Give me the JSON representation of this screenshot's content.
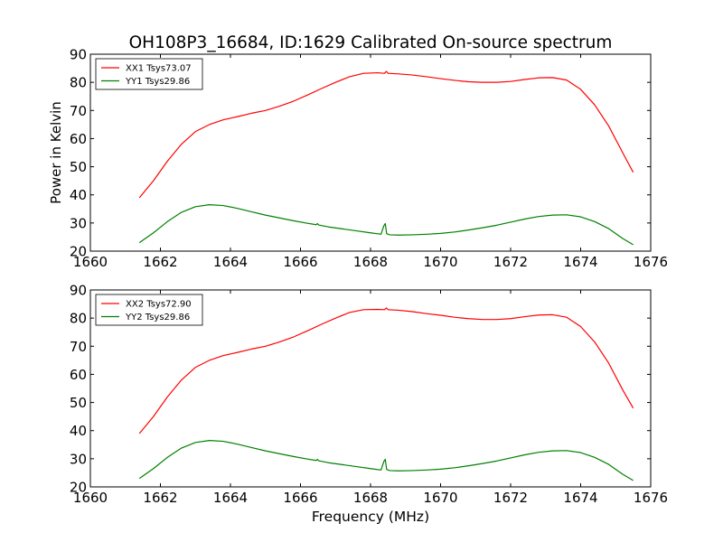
{
  "figure": {
    "title": "OH108P3_16684, ID:1629 Calibrated On-source spectrum",
    "xlabel": "Frequency (MHz)"
  },
  "chart_data": [
    {
      "type": "line",
      "title": "OH108P3_16684, ID:1629 Calibrated On-source spectrum",
      "xlabel": "",
      "ylabel": "Power in Kelvin",
      "xlim": [
        1660,
        1676
      ],
      "ylim": [
        20,
        90
      ],
      "xticks": [
        1660,
        1662,
        1664,
        1666,
        1668,
        1670,
        1672,
        1674,
        1676
      ],
      "yticks": [
        20,
        30,
        40,
        50,
        60,
        70,
        80,
        90
      ],
      "grid": false,
      "legend": "top-left",
      "series": [
        {
          "name": "XX1 Tsys73.07",
          "color": "#ff0000",
          "x": [
            1661.4,
            1661.8,
            1662.2,
            1662.6,
            1663.0,
            1663.4,
            1663.8,
            1664.2,
            1664.6,
            1665.0,
            1665.4,
            1665.8,
            1666.2,
            1666.6,
            1667.0,
            1667.4,
            1667.8,
            1668.2,
            1668.4,
            1668.45,
            1668.5,
            1668.8,
            1669.2,
            1669.6,
            1670.0,
            1670.4,
            1670.8,
            1671.2,
            1671.6,
            1672.0,
            1672.4,
            1672.8,
            1673.2,
            1673.6,
            1674.0,
            1674.4,
            1674.8,
            1675.2,
            1675.5
          ],
          "y": [
            39.0,
            45.0,
            52.0,
            58.0,
            62.5,
            65.0,
            66.7,
            67.8,
            69.0,
            70.0,
            71.5,
            73.3,
            75.5,
            77.8,
            80.0,
            82.0,
            83.2,
            83.4,
            83.2,
            83.9,
            83.2,
            83.0,
            82.6,
            82.0,
            81.3,
            80.7,
            80.2,
            80.0,
            80.0,
            80.3,
            81.0,
            81.6,
            81.7,
            80.8,
            77.5,
            72.0,
            64.5,
            55.0,
            48.0
          ]
        },
        {
          "name": "YY1 Tsys29.86",
          "color": "#008000",
          "x": [
            1661.4,
            1661.8,
            1662.2,
            1662.6,
            1663.0,
            1663.4,
            1663.8,
            1664.2,
            1664.6,
            1665.0,
            1665.4,
            1665.8,
            1666.2,
            1666.45,
            1666.48,
            1666.52,
            1666.8,
            1667.2,
            1667.6,
            1668.0,
            1668.3,
            1668.38,
            1668.42,
            1668.46,
            1668.55,
            1668.8,
            1669.2,
            1669.6,
            1670.0,
            1670.4,
            1670.8,
            1671.2,
            1671.6,
            1672.0,
            1672.4,
            1672.8,
            1673.2,
            1673.6,
            1674.0,
            1674.4,
            1674.8,
            1675.2,
            1675.5
          ],
          "y": [
            23.0,
            26.5,
            30.5,
            33.8,
            35.8,
            36.5,
            36.2,
            35.2,
            34.0,
            32.8,
            31.8,
            30.8,
            29.9,
            29.4,
            29.8,
            29.3,
            28.6,
            27.9,
            27.2,
            26.5,
            26.0,
            29.0,
            29.8,
            26.2,
            25.8,
            25.7,
            25.8,
            26.0,
            26.3,
            26.8,
            27.5,
            28.3,
            29.2,
            30.3,
            31.4,
            32.3,
            32.8,
            32.9,
            32.2,
            30.5,
            28.0,
            24.5,
            22.3
          ]
        }
      ]
    },
    {
      "type": "line",
      "title": "",
      "xlabel": "Frequency (MHz)",
      "ylabel": "",
      "xlim": [
        1660,
        1676
      ],
      "ylim": [
        20,
        90
      ],
      "xticks": [
        1660,
        1662,
        1664,
        1666,
        1668,
        1670,
        1672,
        1674,
        1676
      ],
      "yticks": [
        20,
        30,
        40,
        50,
        60,
        70,
        80,
        90
      ],
      "grid": false,
      "legend": "top-left",
      "series": [
        {
          "name": "XX2 Tsys72.90",
          "color": "#ff0000",
          "x": [
            1661.4,
            1661.8,
            1662.2,
            1662.6,
            1663.0,
            1663.4,
            1663.8,
            1664.2,
            1664.6,
            1665.0,
            1665.4,
            1665.8,
            1666.2,
            1666.6,
            1667.0,
            1667.4,
            1667.8,
            1668.2,
            1668.4,
            1668.45,
            1668.5,
            1668.8,
            1669.2,
            1669.6,
            1670.0,
            1670.4,
            1670.8,
            1671.2,
            1671.6,
            1672.0,
            1672.4,
            1672.8,
            1673.2,
            1673.6,
            1674.0,
            1674.4,
            1674.8,
            1675.2,
            1675.5
          ],
          "y": [
            39.0,
            45.0,
            52.0,
            58.0,
            62.5,
            65.0,
            66.7,
            67.8,
            69.0,
            70.0,
            71.5,
            73.3,
            75.5,
            77.8,
            80.0,
            82.0,
            83.0,
            83.1,
            83.0,
            83.6,
            83.0,
            82.8,
            82.3,
            81.6,
            81.0,
            80.3,
            79.8,
            79.5,
            79.5,
            79.8,
            80.5,
            81.1,
            81.2,
            80.3,
            77.0,
            71.5,
            64.0,
            54.5,
            48.0
          ]
        },
        {
          "name": "YY2 Tsys29.86",
          "color": "#008000",
          "x": [
            1661.4,
            1661.8,
            1662.2,
            1662.6,
            1663.0,
            1663.4,
            1663.8,
            1664.2,
            1664.6,
            1665.0,
            1665.4,
            1665.8,
            1666.2,
            1666.45,
            1666.48,
            1666.52,
            1666.8,
            1667.2,
            1667.6,
            1668.0,
            1668.3,
            1668.38,
            1668.42,
            1668.46,
            1668.55,
            1668.8,
            1669.2,
            1669.6,
            1670.0,
            1670.4,
            1670.8,
            1671.2,
            1671.6,
            1672.0,
            1672.4,
            1672.8,
            1673.2,
            1673.6,
            1674.0,
            1674.4,
            1674.8,
            1675.2,
            1675.5
          ],
          "y": [
            23.0,
            26.5,
            30.5,
            33.8,
            35.8,
            36.5,
            36.2,
            35.2,
            34.0,
            32.8,
            31.8,
            30.8,
            29.9,
            29.4,
            29.8,
            29.3,
            28.6,
            27.9,
            27.2,
            26.5,
            26.0,
            29.0,
            29.8,
            26.2,
            25.8,
            25.7,
            25.8,
            26.0,
            26.3,
            26.8,
            27.5,
            28.3,
            29.2,
            30.3,
            31.4,
            32.3,
            32.8,
            32.9,
            32.2,
            30.5,
            28.0,
            24.5,
            22.3
          ]
        }
      ]
    }
  ]
}
